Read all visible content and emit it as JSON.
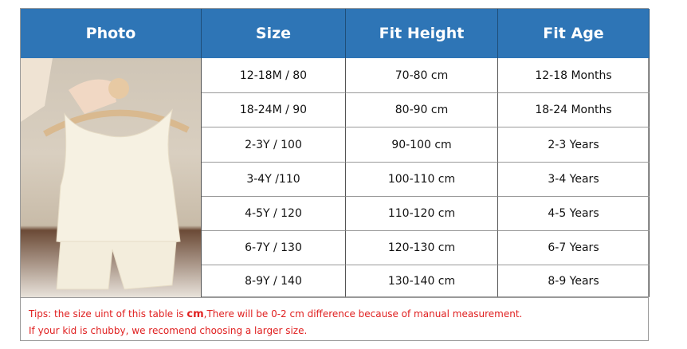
{
  "headers": [
    "Photo",
    "Size",
    "Fit Height",
    "Fit Age"
  ],
  "rows": [
    [
      "12-18M / 80",
      "70-80 cm",
      "12-18 Months"
    ],
    [
      "18-24M / 90",
      "80-90 cm",
      "18-24 Months"
    ],
    [
      "2-3Y / 100",
      "90-100 cm",
      "2-3 Years"
    ],
    [
      "3-4Y /110",
      "100-110 cm",
      "3-4 Years"
    ],
    [
      "4-5Y / 120",
      "110-120 cm",
      "4-5 Years"
    ],
    [
      "6-7Y / 130",
      "120-130 cm",
      "6-7 Years"
    ],
    [
      "8-9Y / 140",
      "130-140 cm",
      "8-9 Years"
    ]
  ],
  "tips": {
    "line1_a": "Tips: the size uint of this table is ",
    "line1_unit": "cm",
    "line1_b": ",There will be 0-2 cm difference because of manual measurement.",
    "line2": "If your kid is chubby, we recomend choosing a larger size."
  },
  "colors": {
    "header_bg": "#2e75b6",
    "tips_text": "#e02020"
  }
}
